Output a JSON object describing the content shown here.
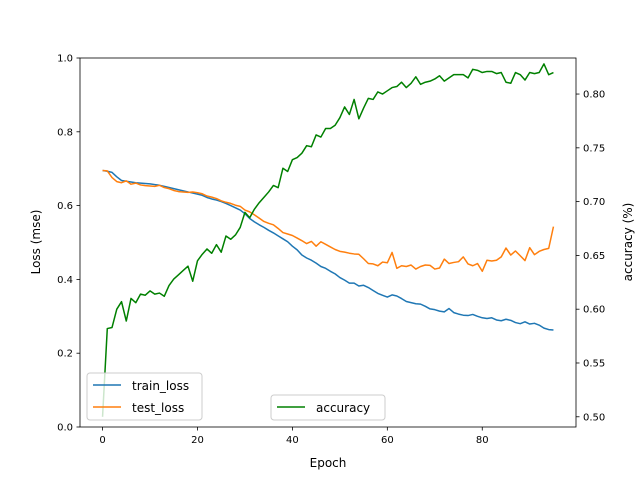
{
  "chart_data": {
    "type": "line",
    "xlabel": "Epoch",
    "ylabel_left": "Loss (mse)",
    "ylabel_right": "accuracy (%)",
    "xlim": [
      -4.75,
      99.75
    ],
    "ylim_left": [
      0.0,
      1.0
    ],
    "ylim_right": [
      0.4905,
      0.8335
    ],
    "xticks": [
      0,
      20,
      40,
      60,
      80
    ],
    "yticks_left": [
      0.0,
      0.2,
      0.4,
      0.6,
      0.8,
      1.0
    ],
    "yticks_left_labels": [
      "0.0",
      "0.2",
      "0.4",
      "0.6",
      "0.8",
      "1.0"
    ],
    "yticks_right": [
      0.5,
      0.55,
      0.6,
      0.65,
      0.7,
      0.75,
      0.8
    ],
    "yticks_right_labels": [
      "0.50",
      "0.55",
      "0.60",
      "0.65",
      "0.70",
      "0.75",
      "0.80"
    ],
    "grid": false,
    "legend_left": "lower-left",
    "legend_right": "lower-center",
    "x": [
      0,
      1,
      2,
      3,
      4,
      5,
      6,
      7,
      8,
      9,
      10,
      11,
      12,
      13,
      14,
      15,
      16,
      17,
      18,
      19,
      20,
      21,
      22,
      23,
      24,
      25,
      26,
      27,
      28,
      29,
      30,
      31,
      32,
      33,
      34,
      35,
      36,
      37,
      38,
      39,
      40,
      41,
      42,
      43,
      44,
      45,
      46,
      47,
      48,
      49,
      50,
      51,
      52,
      53,
      54,
      55,
      56,
      57,
      58,
      59,
      60,
      61,
      62,
      63,
      64,
      65,
      66,
      67,
      68,
      69,
      70,
      71,
      72,
      73,
      74,
      75,
      76,
      77,
      78,
      79,
      80,
      81,
      82,
      83,
      84,
      85,
      86,
      87,
      88,
      89,
      90,
      91,
      92,
      93,
      94,
      95
    ],
    "series": [
      {
        "name": "train_loss",
        "axis": "left",
        "color": "#1f77b4",
        "values": [
          0.695,
          0.693,
          0.69,
          0.678,
          0.668,
          0.666,
          0.664,
          0.662,
          0.661,
          0.66,
          0.659,
          0.657,
          0.655,
          0.652,
          0.649,
          0.646,
          0.643,
          0.64,
          0.637,
          0.634,
          0.631,
          0.628,
          0.622,
          0.618,
          0.615,
          0.611,
          0.606,
          0.6,
          0.594,
          0.588,
          0.578,
          0.565,
          0.556,
          0.548,
          0.541,
          0.533,
          0.526,
          0.518,
          0.51,
          0.502,
          0.49,
          0.48,
          0.466,
          0.458,
          0.452,
          0.444,
          0.435,
          0.43,
          0.422,
          0.415,
          0.405,
          0.398,
          0.39,
          0.39,
          0.382,
          0.384,
          0.378,
          0.37,
          0.362,
          0.357,
          0.352,
          0.358,
          0.355,
          0.348,
          0.34,
          0.337,
          0.334,
          0.333,
          0.327,
          0.32,
          0.318,
          0.314,
          0.312,
          0.321,
          0.31,
          0.306,
          0.303,
          0.302,
          0.305,
          0.3,
          0.296,
          0.294,
          0.296,
          0.29,
          0.288,
          0.292,
          0.289,
          0.283,
          0.28,
          0.285,
          0.279,
          0.281,
          0.276,
          0.268,
          0.264,
          0.263
        ]
      },
      {
        "name": "test_loss",
        "axis": "left",
        "color": "#ff7f0e",
        "values": [
          0.695,
          0.694,
          0.676,
          0.665,
          0.662,
          0.667,
          0.658,
          0.661,
          0.656,
          0.654,
          0.653,
          0.652,
          0.655,
          0.649,
          0.646,
          0.641,
          0.638,
          0.637,
          0.636,
          0.637,
          0.635,
          0.632,
          0.626,
          0.623,
          0.619,
          0.613,
          0.609,
          0.606,
          0.601,
          0.598,
          0.588,
          0.583,
          0.575,
          0.566,
          0.557,
          0.552,
          0.548,
          0.538,
          0.527,
          0.523,
          0.519,
          0.512,
          0.505,
          0.497,
          0.503,
          0.49,
          0.502,
          0.495,
          0.488,
          0.481,
          0.476,
          0.474,
          0.471,
          0.469,
          0.468,
          0.456,
          0.443,
          0.442,
          0.437,
          0.447,
          0.445,
          0.473,
          0.43,
          0.437,
          0.435,
          0.439,
          0.428,
          0.435,
          0.439,
          0.438,
          0.428,
          0.431,
          0.455,
          0.443,
          0.446,
          0.448,
          0.461,
          0.442,
          0.437,
          0.443,
          0.422,
          0.452,
          0.45,
          0.452,
          0.461,
          0.485,
          0.466,
          0.477,
          0.464,
          0.451,
          0.486,
          0.467,
          0.476,
          0.481,
          0.484,
          0.543
        ]
      },
      {
        "name": "accuracy",
        "axis": "right",
        "color": "#008000",
        "values": [
          0.5,
          0.582,
          0.583,
          0.6,
          0.607,
          0.589,
          0.61,
          0.606,
          0.614,
          0.613,
          0.617,
          0.614,
          0.615,
          0.612,
          0.622,
          0.628,
          0.632,
          0.636,
          0.64,
          0.626,
          0.645,
          0.651,
          0.656,
          0.652,
          0.66,
          0.653,
          0.668,
          0.665,
          0.669,
          0.676,
          0.69,
          0.685,
          0.693,
          0.699,
          0.704,
          0.709,
          0.715,
          0.713,
          0.731,
          0.728,
          0.739,
          0.741,
          0.745,
          0.752,
          0.751,
          0.762,
          0.76,
          0.768,
          0.768,
          0.771,
          0.778,
          0.788,
          0.781,
          0.795,
          0.777,
          0.787,
          0.796,
          0.795,
          0.802,
          0.8,
          0.803,
          0.806,
          0.807,
          0.811,
          0.806,
          0.81,
          0.816,
          0.809,
          0.811,
          0.812,
          0.814,
          0.817,
          0.812,
          0.815,
          0.818,
          0.818,
          0.818,
          0.815,
          0.823,
          0.822,
          0.82,
          0.821,
          0.821,
          0.819,
          0.82,
          0.811,
          0.81,
          0.82,
          0.818,
          0.813,
          0.82,
          0.819,
          0.82,
          0.828,
          0.818,
          0.82
        ]
      }
    ]
  }
}
